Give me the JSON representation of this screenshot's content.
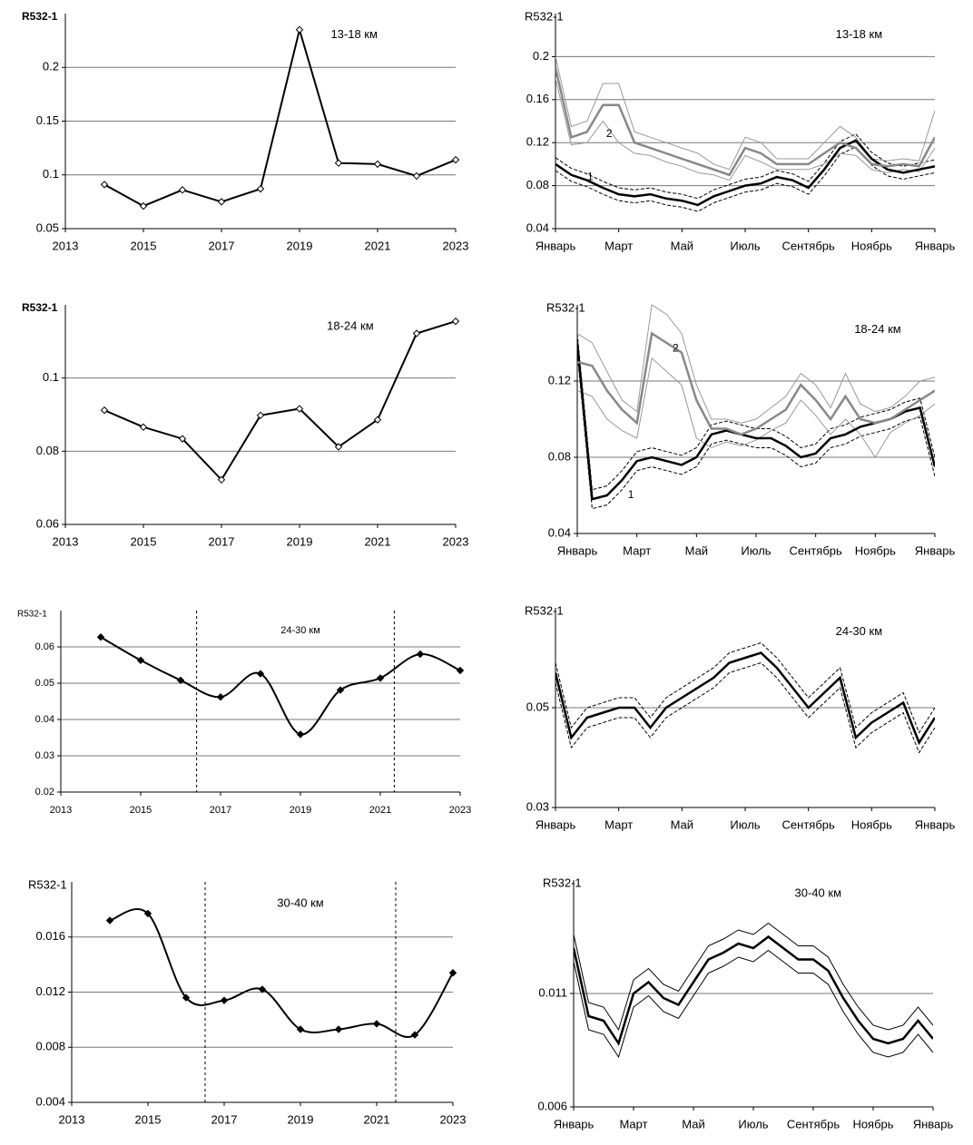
{
  "chart_data": [
    {
      "type": "line",
      "title": "13-18 км",
      "ylabel": "R532-1",
      "marker": "diamond-open",
      "smooth": false,
      "x": [
        2014,
        2015,
        2016,
        2017,
        2018,
        2019,
        2020,
        2021,
        2022,
        2023
      ],
      "xlim": [
        2013,
        2023
      ],
      "xticks": [
        2013,
        2015,
        2017,
        2019,
        2021,
        2023
      ],
      "ylim": [
        0.05,
        0.25
      ],
      "yticks": [
        0.05,
        0.1,
        0.15,
        0.2
      ],
      "grid": true,
      "series": [
        {
          "color": "#000000",
          "values": [
            0.091,
            0.071,
            0.086,
            0.075,
            0.087,
            0.235,
            0.111,
            0.11,
            0.099,
            0.114
          ]
        }
      ]
    },
    {
      "type": "timeseries",
      "title": "13-18 км",
      "ylabel": "R532-1",
      "x": [
        0,
        0.5,
        1,
        1.5,
        2,
        2.5,
        3,
        3.5,
        4,
        4.5,
        5,
        5.5,
        6,
        6.5,
        7,
        7.5,
        8,
        8.5,
        9,
        9.5,
        10,
        10.5,
        11,
        11.5,
        12
      ],
      "xlim": [
        0,
        12
      ],
      "xticks": [
        {
          "value": 0,
          "label": "Январь"
        },
        {
          "value": 2,
          "label": "Март"
        },
        {
          "value": 4,
          "label": "Май"
        },
        {
          "value": 6,
          "label": "Июль"
        },
        {
          "value": 8,
          "label": "Сентябрь"
        },
        {
          "value": 10,
          "label": "Ноябрь"
        },
        {
          "value": 12,
          "label": "Январь"
        }
      ],
      "ylim": [
        0.04,
        0.24
      ],
      "yticks": [
        0.04,
        0.08,
        0.12,
        0.16,
        0.2
      ],
      "grid": true,
      "annotations": [
        "1",
        "2"
      ],
      "series": [
        {
          "color": "#000000",
          "width": 2.5,
          "dash": false,
          "values": [
            0.1,
            0.09,
            0.085,
            0.078,
            0.072,
            0.07,
            0.072,
            0.068,
            0.066,
            0.062,
            0.07,
            0.075,
            0.08,
            0.082,
            0.088,
            0.085,
            0.078,
            0.095,
            0.115,
            0.122,
            0.105,
            0.095,
            0.092,
            0.095,
            0.098
          ]
        },
        {
          "color": "#000000",
          "width": 1,
          "dash": true,
          "values": [
            0.106,
            0.096,
            0.091,
            0.084,
            0.078,
            0.076,
            0.078,
            0.074,
            0.072,
            0.068,
            0.076,
            0.081,
            0.086,
            0.088,
            0.094,
            0.091,
            0.084,
            0.101,
            0.121,
            0.128,
            0.111,
            0.101,
            0.098,
            0.101,
            0.104
          ]
        },
        {
          "color": "#000000",
          "width": 1,
          "dash": true,
          "values": [
            0.094,
            0.084,
            0.079,
            0.072,
            0.066,
            0.064,
            0.066,
            0.062,
            0.06,
            0.056,
            0.064,
            0.069,
            0.074,
            0.076,
            0.082,
            0.079,
            0.072,
            0.089,
            0.109,
            0.116,
            0.099,
            0.089,
            0.086,
            0.089,
            0.092
          ]
        },
        {
          "color": "#888888",
          "width": 2.5,
          "dash": false,
          "values": [
            0.19,
            0.125,
            0.13,
            0.155,
            0.155,
            0.12,
            0.115,
            0.11,
            0.105,
            0.1,
            0.095,
            0.09,
            0.115,
            0.11,
            0.1,
            0.1,
            0.1,
            0.11,
            0.12,
            0.115,
            0.1,
            0.098,
            0.1,
            0.098,
            0.125
          ]
        },
        {
          "color": "#999999",
          "width": 1,
          "dash": false,
          "values": [
            0.2,
            0.135,
            0.14,
            0.175,
            0.175,
            0.13,
            0.125,
            0.12,
            0.115,
            0.11,
            0.1,
            0.095,
            0.125,
            0.12,
            0.105,
            0.105,
            0.105,
            0.12,
            0.135,
            0.125,
            0.105,
            0.103,
            0.105,
            0.103,
            0.15
          ]
        },
        {
          "color": "#999999",
          "width": 1,
          "dash": false,
          "values": [
            0.18,
            0.118,
            0.12,
            0.14,
            0.12,
            0.11,
            0.108,
            0.102,
            0.098,
            0.092,
            0.09,
            0.085,
            0.108,
            0.102,
            0.095,
            0.095,
            0.095,
            0.1,
            0.11,
            0.108,
            0.095,
            0.092,
            0.095,
            0.093,
            0.115
          ]
        }
      ]
    },
    {
      "type": "line",
      "title": "18-24 км",
      "ylabel": "R532-1",
      "marker": "diamond-open",
      "smooth": false,
      "x": [
        2014,
        2015,
        2016,
        2017,
        2018,
        2019,
        2020,
        2021,
        2022,
        2023
      ],
      "xlim": [
        2013,
        2023
      ],
      "xticks": [
        2013,
        2015,
        2017,
        2019,
        2021,
        2023
      ],
      "ylim": [
        0.06,
        0.12
      ],
      "yticks": [
        0.06,
        0.08,
        0.1
      ],
      "grid": true,
      "series": [
        {
          "color": "#000000",
          "values": [
            0.0912,
            0.0866,
            0.0834,
            0.0722,
            0.0898,
            0.0916,
            0.0812,
            0.0886,
            0.1122,
            0.1155
          ]
        }
      ]
    },
    {
      "type": "timeseries",
      "title": "18-24 км",
      "ylabel": "R532-1",
      "x": [
        0,
        0.5,
        1,
        1.5,
        2,
        2.5,
        3,
        3.5,
        4,
        4.5,
        5,
        5.5,
        6,
        6.5,
        7,
        7.5,
        8,
        8.5,
        9,
        9.5,
        10,
        10.5,
        11,
        11.5,
        12
      ],
      "xlim": [
        0,
        12
      ],
      "xticks": [
        {
          "value": 0,
          "label": "Январь"
        },
        {
          "value": 2,
          "label": "Март"
        },
        {
          "value": 4,
          "label": "Май"
        },
        {
          "value": 6,
          "label": "Июль"
        },
        {
          "value": 8,
          "label": "Сентябрь"
        },
        {
          "value": 10,
          "label": "Ноябрь"
        },
        {
          "value": 12,
          "label": "Январь"
        }
      ],
      "ylim": [
        0.04,
        0.16
      ],
      "yticks": [
        0.04,
        0.08,
        0.12
      ],
      "grid": true,
      "annotations": [
        "1",
        "2"
      ],
      "series": [
        {
          "color": "#000000",
          "width": 2.5,
          "dash": false,
          "values": [
            0.14,
            0.058,
            0.06,
            0.068,
            0.078,
            0.08,
            0.078,
            0.076,
            0.08,
            0.092,
            0.094,
            0.092,
            0.09,
            0.09,
            0.086,
            0.08,
            0.082,
            0.09,
            0.092,
            0.096,
            0.098,
            0.1,
            0.104,
            0.106,
            0.075
          ]
        },
        {
          "color": "#000000",
          "width": 1,
          "dash": true,
          "values": [
            0.145,
            0.063,
            0.065,
            0.073,
            0.083,
            0.085,
            0.083,
            0.081,
            0.085,
            0.097,
            0.099,
            0.097,
            0.095,
            0.095,
            0.091,
            0.085,
            0.087,
            0.095,
            0.097,
            0.101,
            0.103,
            0.105,
            0.109,
            0.111,
            0.08
          ]
        },
        {
          "color": "#000000",
          "width": 1,
          "dash": true,
          "values": [
            0.135,
            0.053,
            0.055,
            0.063,
            0.073,
            0.075,
            0.073,
            0.071,
            0.075,
            0.087,
            0.089,
            0.087,
            0.085,
            0.085,
            0.081,
            0.075,
            0.077,
            0.085,
            0.087,
            0.091,
            0.093,
            0.095,
            0.099,
            0.101,
            0.07
          ]
        },
        {
          "color": "#888888",
          "width": 2.5,
          "dash": false,
          "values": [
            0.13,
            0.128,
            0.115,
            0.105,
            0.098,
            0.145,
            0.14,
            0.135,
            0.11,
            0.095,
            0.095,
            0.092,
            0.095,
            0.1,
            0.105,
            0.118,
            0.11,
            0.1,
            0.112,
            0.1,
            0.098,
            0.1,
            0.105,
            0.11,
            0.115
          ]
        },
        {
          "color": "#999999",
          "width": 1,
          "dash": false,
          "values": [
            0.145,
            0.14,
            0.125,
            0.11,
            0.104,
            0.16,
            0.155,
            0.145,
            0.118,
            0.1,
            0.1,
            0.098,
            0.1,
            0.106,
            0.112,
            0.124,
            0.118,
            0.106,
            0.124,
            0.108,
            0.104,
            0.106,
            0.112,
            0.12,
            0.122
          ]
        },
        {
          "color": "#999999",
          "width": 1,
          "dash": false,
          "values": [
            0.115,
            0.112,
            0.1,
            0.094,
            0.09,
            0.132,
            0.125,
            0.118,
            0.09,
            0.085,
            0.088,
            0.086,
            0.089,
            0.094,
            0.098,
            0.11,
            0.102,
            0.092,
            0.1,
            0.092,
            0.08,
            0.093,
            0.098,
            0.102,
            0.108
          ]
        }
      ]
    },
    {
      "type": "line",
      "title": "24-30 км",
      "ylabel": "R532-1",
      "marker": "diamond",
      "smooth": true,
      "x": [
        2014,
        2015,
        2016,
        2017,
        2018,
        2019,
        2020,
        2021,
        2022,
        2023
      ],
      "xlim": [
        2013,
        2023
      ],
      "xticks": [
        2013,
        2015,
        2017,
        2019,
        2021,
        2023
      ],
      "ylim": [
        0.02,
        0.07
      ],
      "yticks": [
        0.02,
        0.03,
        0.04,
        0.05,
        0.06
      ],
      "grid": true,
      "vlines": [
        2016.4,
        2021.35
      ],
      "series": [
        {
          "color": "#000000",
          "values": [
            0.0627,
            0.0563,
            0.0508,
            0.0462,
            0.0526,
            0.0359,
            0.0481,
            0.0514,
            0.058,
            0.0535
          ]
        }
      ]
    },
    {
      "type": "timeseries",
      "title": "24-30 км",
      "ylabel": "R532-1",
      "x": [
        0,
        0.5,
        1,
        1.5,
        2,
        2.5,
        3,
        3.5,
        4,
        4.5,
        5,
        5.5,
        6,
        6.5,
        7,
        7.5,
        8,
        8.5,
        9,
        9.5,
        10,
        10.5,
        11,
        11.5,
        12
      ],
      "xlim": [
        0,
        12
      ],
      "xticks": [
        {
          "value": 0,
          "label": "Январь"
        },
        {
          "value": 2,
          "label": "Март"
        },
        {
          "value": 4,
          "label": "Май"
        },
        {
          "value": 6,
          "label": "Июль"
        },
        {
          "value": 8,
          "label": "Сентябрь"
        },
        {
          "value": 10,
          "label": "Ноябрь"
        },
        {
          "value": 12,
          "label": "Январь"
        }
      ],
      "ylim": [
        0.03,
        0.07
      ],
      "yticks": [
        0.03,
        0.05
      ],
      "grid": true,
      "series": [
        {
          "color": "#000000",
          "width": 2.5,
          "dash": false,
          "values": [
            0.057,
            0.044,
            0.048,
            0.049,
            0.05,
            0.05,
            0.046,
            0.05,
            0.052,
            0.054,
            0.056,
            0.059,
            0.06,
            0.061,
            0.058,
            0.054,
            0.05,
            0.053,
            0.056,
            0.044,
            0.047,
            0.049,
            0.051,
            0.043,
            0.048
          ]
        },
        {
          "color": "#000000",
          "width": 1,
          "dash": true,
          "values": [
            0.059,
            0.046,
            0.05,
            0.051,
            0.052,
            0.052,
            0.048,
            0.052,
            0.054,
            0.056,
            0.058,
            0.061,
            0.062,
            0.063,
            0.06,
            0.056,
            0.052,
            0.055,
            0.058,
            0.046,
            0.049,
            0.051,
            0.053,
            0.045,
            0.05
          ]
        },
        {
          "color": "#000000",
          "width": 1,
          "dash": true,
          "values": [
            0.055,
            0.042,
            0.046,
            0.047,
            0.048,
            0.048,
            0.044,
            0.048,
            0.05,
            0.052,
            0.054,
            0.057,
            0.058,
            0.059,
            0.056,
            0.052,
            0.048,
            0.051,
            0.054,
            0.042,
            0.045,
            0.047,
            0.049,
            0.041,
            0.046
          ]
        }
      ]
    },
    {
      "type": "line",
      "title": "30-40 км",
      "ylabel": "R532-1",
      "marker": "diamond",
      "smooth": true,
      "x": [
        2014,
        2015,
        2016,
        2017,
        2018,
        2019,
        2020,
        2021,
        2022,
        2023
      ],
      "xlim": [
        2013,
        2023
      ],
      "xticks": [
        2013,
        2015,
        2017,
        2019,
        2021,
        2023
      ],
      "ylim": [
        0.004,
        0.02
      ],
      "yticks": [
        0.004,
        0.008,
        0.012,
        0.016
      ],
      "grid": true,
      "vlines": [
        2016.5,
        2021.5
      ],
      "series": [
        {
          "color": "#000000",
          "values": [
            0.0172,
            0.0177,
            0.0116,
            0.0114,
            0.0122,
            0.0093,
            0.0093,
            0.0097,
            0.0089,
            0.0134
          ]
        }
      ]
    },
    {
      "type": "timeseries",
      "title": "30-40 км",
      "ylabel": "R532-1",
      "x": [
        0,
        0.5,
        1,
        1.5,
        2,
        2.5,
        3,
        3.5,
        4,
        4.5,
        5,
        5.5,
        6,
        6.5,
        7,
        7.5,
        8,
        8.5,
        9,
        9.5,
        10,
        10.5,
        11,
        11.5,
        12
      ],
      "xlim": [
        0,
        12
      ],
      "xticks": [
        {
          "value": 0,
          "label": "Январь"
        },
        {
          "value": 2,
          "label": "Март"
        },
        {
          "value": 4,
          "label": "Май"
        },
        {
          "value": 6,
          "label": "Июль"
        },
        {
          "value": 8,
          "label": "Сентябрь"
        },
        {
          "value": 10,
          "label": "Ноябрь"
        },
        {
          "value": 12,
          "label": "Январь"
        }
      ],
      "ylim": [
        0.006,
        0.016
      ],
      "yticks": [
        0.006,
        0.011
      ],
      "grid": true,
      "series": [
        {
          "color": "#000000",
          "width": 2.5,
          "dash": false,
          "values": [
            0.013,
            0.01,
            0.0098,
            0.0088,
            0.011,
            0.0115,
            0.0108,
            0.0105,
            0.0115,
            0.0125,
            0.0128,
            0.0132,
            0.013,
            0.0135,
            0.013,
            0.0125,
            0.0125,
            0.012,
            0.0108,
            0.0098,
            0.009,
            0.0088,
            0.009,
            0.0098,
            0.009
          ]
        },
        {
          "color": "#000000",
          "width": 1,
          "dash": false,
          "values": [
            0.0136,
            0.0106,
            0.0104,
            0.0094,
            0.0116,
            0.0121,
            0.0114,
            0.0111,
            0.0121,
            0.0131,
            0.0134,
            0.0138,
            0.0136,
            0.0141,
            0.0136,
            0.0131,
            0.0131,
            0.0126,
            0.0114,
            0.0104,
            0.0096,
            0.0094,
            0.0096,
            0.0104,
            0.0096
          ]
        },
        {
          "color": "#000000",
          "width": 1,
          "dash": false,
          "values": [
            0.0124,
            0.0094,
            0.0092,
            0.0082,
            0.0104,
            0.0109,
            0.0102,
            0.0099,
            0.0109,
            0.0119,
            0.0122,
            0.0126,
            0.0124,
            0.0129,
            0.0124,
            0.0119,
            0.0119,
            0.0114,
            0.0102,
            0.0092,
            0.0084,
            0.0082,
            0.0084,
            0.0092,
            0.0084
          ]
        }
      ]
    }
  ]
}
